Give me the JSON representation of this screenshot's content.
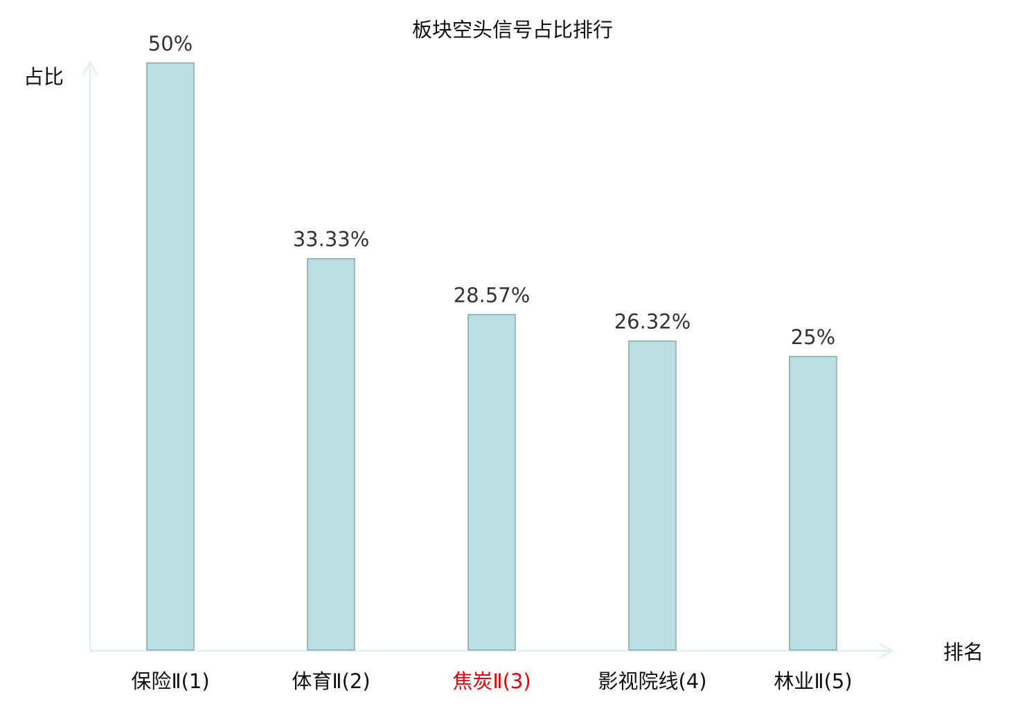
{
  "chart_data": {
    "type": "bar",
    "title": "板块空头信号占比排行",
    "xlabel": "排名",
    "ylabel": "占比",
    "ylim": [
      0,
      50
    ],
    "grid": false,
    "categories": [
      "保险Ⅱ(1)",
      "体育Ⅱ(2)",
      "焦炭Ⅱ(3)",
      "影视院线(4)",
      "林业Ⅱ(5)"
    ],
    "values": [
      50,
      33.33,
      28.57,
      26.32,
      25
    ],
    "value_labels": [
      "50%",
      "33.33%",
      "28.57%",
      "26.32%",
      "25%"
    ],
    "category_colors": [
      "#111111",
      "#111111",
      "#e8000b",
      "#111111",
      "#111111"
    ],
    "bar_color": "#bbe0e3",
    "bar_edge_color": "#86a5a7",
    "axis_color": "#dff2f0"
  }
}
